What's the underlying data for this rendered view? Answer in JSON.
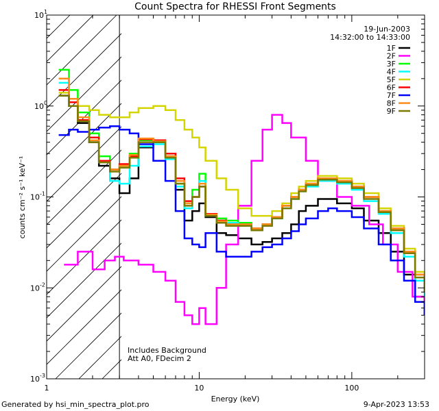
{
  "chart_data": {
    "type": "line",
    "title": "Count Spectra for RHESSI Front Segments",
    "xlabel": "Energy (keV)",
    "ylabel": "counts cm⁻² s⁻¹ keV⁻¹",
    "xscale": "log",
    "yscale": "log",
    "xlim": [
      1,
      300
    ],
    "ylim": [
      0.001,
      10
    ],
    "x_ticks": [
      {
        "value": 1,
        "label": "1"
      },
      {
        "value": 10,
        "label": "10"
      },
      {
        "value": 100,
        "label": "100"
      }
    ],
    "y_ticks": [
      {
        "value": 10,
        "base": "10",
        "exp": "1"
      },
      {
        "value": 1,
        "base": "10",
        "exp": "0"
      },
      {
        "value": 0.1,
        "base": "10",
        "exp": "-1"
      },
      {
        "value": 0.01,
        "base": "10",
        "exp": "-2"
      },
      {
        "value": 0.001,
        "base": "10",
        "exp": "-3"
      }
    ],
    "hatched_region": {
      "xmin": 1,
      "xmax": 3
    },
    "date": "19-Jun-2003",
    "time_range": "14:32:00 to 14:33:00",
    "legend_position": "top-right",
    "annotations": [
      "Includes Background",
      "Att A0, FDecim 2"
    ],
    "series": [
      {
        "name": "1F",
        "color": "#000000",
        "x": [
          1.2,
          1.4,
          1.6,
          1.9,
          2.2,
          2.6,
          3.0,
          3.5,
          4.0,
          5.0,
          6.0,
          7.0,
          8.0,
          9.0,
          10.0,
          11.0,
          13.0,
          15.0,
          18.0,
          22.0,
          26.0,
          30.0,
          35.0,
          40.0,
          45.0,
          50.0,
          60.0,
          70.0,
          80.0,
          100.0,
          120.0,
          150.0,
          180.0,
          220.0,
          260.0,
          300.0
        ],
        "values": [
          1.3,
          1.0,
          0.65,
          0.4,
          0.22,
          0.16,
          0.11,
          0.16,
          0.35,
          0.4,
          0.28,
          0.12,
          0.055,
          0.07,
          0.085,
          0.06,
          0.04,
          0.038,
          0.035,
          0.03,
          0.032,
          0.035,
          0.04,
          0.05,
          0.07,
          0.08,
          0.095,
          0.095,
          0.085,
          0.075,
          0.055,
          0.04,
          0.025,
          0.014,
          0.008,
          0.005
        ]
      },
      {
        "name": "2F",
        "color": "#ff00ff",
        "x": [
          1.3,
          1.6,
          2.0,
          2.4,
          2.8,
          3.2,
          4.0,
          5.0,
          6.0,
          7.0,
          8.0,
          9.0,
          10.0,
          11.0,
          13.0,
          15.0,
          18.0,
          22.0,
          26.0,
          30.0,
          35.0,
          40.0,
          50.0,
          60.0,
          80.0,
          100.0,
          130.0,
          160.0,
          200.0,
          250.0,
          300.0
        ],
        "values": [
          0.018,
          0.025,
          0.016,
          0.02,
          0.022,
          0.02,
          0.018,
          0.015,
          0.012,
          0.007,
          0.005,
          0.004,
          0.006,
          0.004,
          0.01,
          0.03,
          0.08,
          0.25,
          0.55,
          0.8,
          0.65,
          0.45,
          0.25,
          0.15,
          0.1,
          0.08,
          0.05,
          0.03,
          0.015,
          0.008,
          0.005
        ]
      },
      {
        "name": "3F",
        "color": "#00ff00",
        "x": [
          1.2,
          1.4,
          1.6,
          1.9,
          2.2,
          2.6,
          3.0,
          3.5,
          4.0,
          5.0,
          6.0,
          7.0,
          8.0,
          9.0,
          10.0,
          11.0,
          13.0,
          15.0,
          18.0,
          22.0,
          26.0,
          30.0,
          35.0,
          40.0,
          45.0,
          50.0,
          60.0,
          70.0,
          80.0,
          100.0,
          120.0,
          150.0,
          180.0,
          220.0,
          260.0,
          300.0
        ],
        "values": [
          2.5,
          1.5,
          0.85,
          0.5,
          0.28,
          0.2,
          0.22,
          0.3,
          0.42,
          0.4,
          0.28,
          0.14,
          0.085,
          0.12,
          0.18,
          0.065,
          0.058,
          0.055,
          0.052,
          0.045,
          0.05,
          0.06,
          0.08,
          0.1,
          0.12,
          0.14,
          0.16,
          0.16,
          0.15,
          0.13,
          0.1,
          0.07,
          0.045,
          0.025,
          0.014,
          0.009
        ]
      },
      {
        "name": "4F",
        "color": "#00ffff",
        "x": [
          1.2,
          1.4,
          1.6,
          1.9,
          2.2,
          2.6,
          3.0,
          3.5,
          4.0,
          5.0,
          6.0,
          7.0,
          8.0,
          9.0,
          10.0,
          11.0,
          13.0,
          15.0,
          18.0,
          22.0,
          26.0,
          30.0,
          35.0,
          40.0,
          45.0,
          50.0,
          60.0,
          70.0,
          80.0,
          100.0,
          120.0,
          150.0,
          180.0,
          220.0,
          260.0,
          300.0
        ],
        "values": [
          1.8,
          1.1,
          0.7,
          0.42,
          0.24,
          0.15,
          0.14,
          0.22,
          0.36,
          0.38,
          0.26,
          0.13,
          0.075,
          0.1,
          0.15,
          0.062,
          0.055,
          0.052,
          0.05,
          0.045,
          0.048,
          0.058,
          0.075,
          0.095,
          0.115,
          0.13,
          0.15,
          0.15,
          0.14,
          0.12,
          0.09,
          0.065,
          0.04,
          0.022,
          0.012,
          0.008
        ]
      },
      {
        "name": "5F",
        "color": "#d4d400",
        "x": [
          1.2,
          1.4,
          1.6,
          1.9,
          2.2,
          2.6,
          3.0,
          3.5,
          4.0,
          5.0,
          6.0,
          7.0,
          8.0,
          9.0,
          10.0,
          11.0,
          13.0,
          15.0,
          18.0,
          22.0,
          26.0,
          30.0,
          35.0,
          40.0,
          45.0,
          50.0,
          60.0,
          70.0,
          80.0,
          100.0,
          120.0,
          150.0,
          180.0,
          220.0,
          260.0,
          300.0
        ],
        "values": [
          1.4,
          1.2,
          1.0,
          0.9,
          0.8,
          0.75,
          0.75,
          0.85,
          0.95,
          1.0,
          0.9,
          0.7,
          0.55,
          0.45,
          0.35,
          0.25,
          0.16,
          0.12,
          0.075,
          0.062,
          0.062,
          0.07,
          0.085,
          0.11,
          0.13,
          0.15,
          0.17,
          0.17,
          0.16,
          0.14,
          0.11,
          0.075,
          0.048,
          0.027,
          0.015,
          0.01
        ]
      },
      {
        "name": "6F",
        "color": "#ff0000",
        "x": [
          1.2,
          1.4,
          1.6,
          1.9,
          2.2,
          2.6,
          3.0,
          3.5,
          4.0,
          5.0,
          6.0,
          7.0,
          8.0,
          9.0,
          10.0,
          11.0,
          13.0,
          15.0,
          18.0,
          22.0,
          26.0,
          30.0,
          35.0,
          40.0,
          45.0,
          50.0,
          60.0,
          70.0,
          80.0,
          100.0,
          120.0,
          150.0,
          180.0,
          220.0,
          260.0,
          300.0
        ],
        "values": [
          1.5,
          1.1,
          0.7,
          0.45,
          0.25,
          0.2,
          0.23,
          0.28,
          0.43,
          0.42,
          0.3,
          0.16,
          0.09,
          0.1,
          0.13,
          0.065,
          0.055,
          0.05,
          0.05,
          0.045,
          0.05,
          0.06,
          0.08,
          0.1,
          0.12,
          0.14,
          0.16,
          0.16,
          0.15,
          0.13,
          0.1,
          0.07,
          0.045,
          0.025,
          0.014,
          0.009
        ]
      },
      {
        "name": "7F",
        "color": "#0000ff",
        "x": [
          1.2,
          1.4,
          1.6,
          1.9,
          2.2,
          2.6,
          3.0,
          3.5,
          4.0,
          5.0,
          6.0,
          7.0,
          8.0,
          9.0,
          10.0,
          11.0,
          13.0,
          15.0,
          18.0,
          22.0,
          26.0,
          30.0,
          35.0,
          40.0,
          45.0,
          50.0,
          60.0,
          70.0,
          80.0,
          100.0,
          120.0,
          150.0,
          180.0,
          220.0,
          260.0,
          300.0
        ],
        "values": [
          0.48,
          0.55,
          0.52,
          0.55,
          0.58,
          0.6,
          0.55,
          0.5,
          0.38,
          0.25,
          0.15,
          0.07,
          0.035,
          0.03,
          0.028,
          0.04,
          0.025,
          0.022,
          0.022,
          0.025,
          0.028,
          0.03,
          0.035,
          0.042,
          0.05,
          0.058,
          0.07,
          0.075,
          0.07,
          0.06,
          0.045,
          0.03,
          0.02,
          0.012,
          0.007,
          0.005
        ]
      },
      {
        "name": "8F",
        "color": "#ff8c1a",
        "x": [
          1.2,
          1.4,
          1.6,
          1.9,
          2.2,
          2.6,
          3.0,
          3.5,
          4.0,
          5.0,
          6.0,
          7.0,
          8.0,
          9.0,
          10.0,
          11.0,
          13.0,
          15.0,
          18.0,
          22.0,
          26.0,
          30.0,
          35.0,
          40.0,
          45.0,
          50.0,
          60.0,
          70.0,
          80.0,
          100.0,
          120.0,
          150.0,
          180.0,
          220.0,
          260.0,
          300.0
        ],
        "values": [
          2.0,
          1.2,
          0.75,
          0.42,
          0.24,
          0.2,
          0.22,
          0.29,
          0.44,
          0.41,
          0.28,
          0.15,
          0.085,
          0.1,
          0.14,
          0.064,
          0.054,
          0.05,
          0.05,
          0.045,
          0.05,
          0.06,
          0.08,
          0.1,
          0.12,
          0.14,
          0.16,
          0.16,
          0.15,
          0.13,
          0.1,
          0.07,
          0.045,
          0.025,
          0.014,
          0.009
        ]
      },
      {
        "name": "9F",
        "color": "#7a7a00",
        "x": [
          1.2,
          1.4,
          1.6,
          1.9,
          2.2,
          2.6,
          3.0,
          3.5,
          4.0,
          5.0,
          6.0,
          7.0,
          8.0,
          9.0,
          10.0,
          11.0,
          13.0,
          15.0,
          18.0,
          22.0,
          26.0,
          30.0,
          35.0,
          40.0,
          45.0,
          50.0,
          60.0,
          70.0,
          80.0,
          100.0,
          120.0,
          150.0,
          180.0,
          220.0,
          260.0,
          300.0
        ],
        "values": [
          1.3,
          1.0,
          0.68,
          0.4,
          0.24,
          0.19,
          0.21,
          0.27,
          0.4,
          0.4,
          0.27,
          0.14,
          0.08,
          0.1,
          0.13,
          0.062,
          0.052,
          0.048,
          0.048,
          0.043,
          0.048,
          0.058,
          0.075,
          0.095,
          0.115,
          0.135,
          0.155,
          0.155,
          0.145,
          0.125,
          0.095,
          0.068,
          0.043,
          0.024,
          0.013,
          0.009
        ]
      }
    ]
  },
  "footer": {
    "generated_by": "Generated by hsi_min_spectra_plot.pro",
    "timestamp": "9-Apr-2023 13:53"
  }
}
